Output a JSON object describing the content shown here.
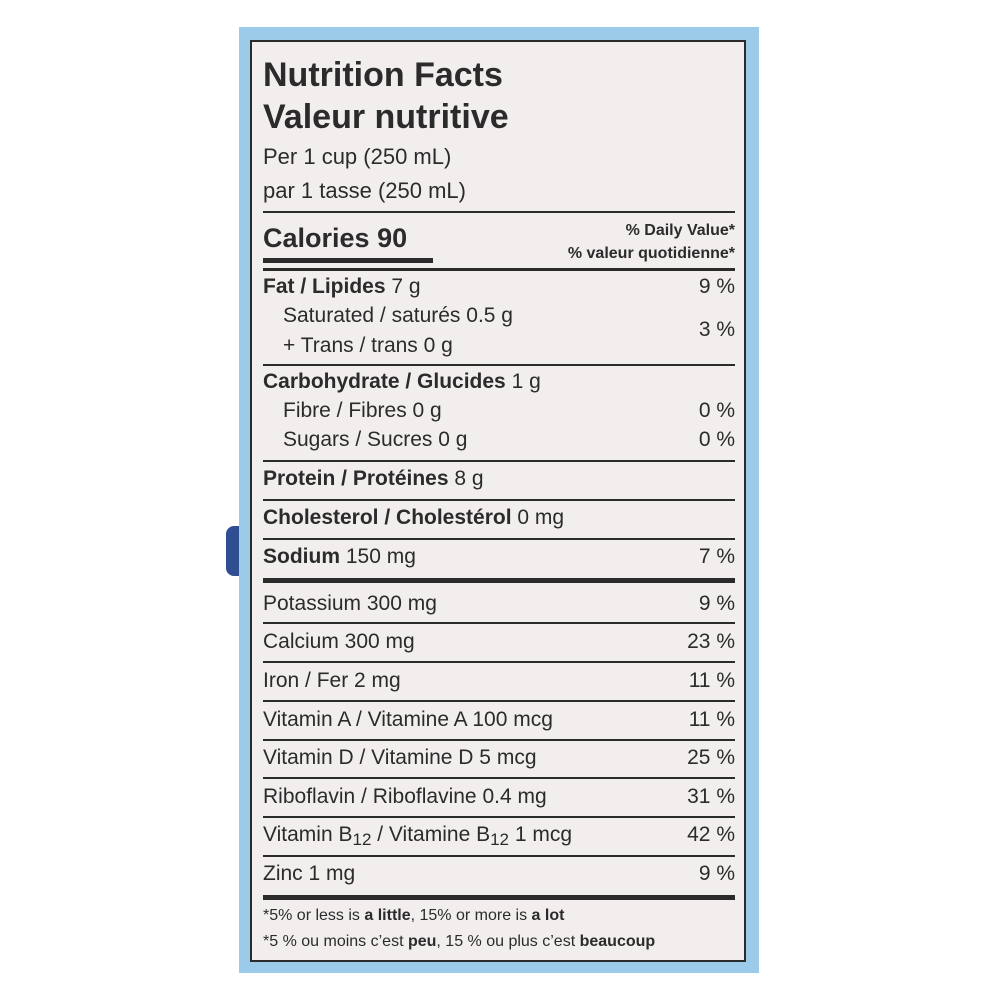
{
  "title_en": "Nutrition Facts",
  "title_fr": "Valeur nutritive",
  "serving_en": "Per 1 cup (250 mL)",
  "serving_fr": "par 1 tasse (250 mL)",
  "calories": {
    "label": "Calories",
    "value": "90"
  },
  "daily_value_en": "% Daily Value*",
  "daily_value_fr": "% valeur quotidienne*",
  "fat": {
    "name": "Fat / Lipides",
    "amount": "7 g",
    "dv": "9 %"
  },
  "saturated": {
    "name": "Saturated / saturés 0.5 g"
  },
  "trans": {
    "name": "+ Trans / trans 0 g"
  },
  "sat_trans_dv": "3 %",
  "carbohydrate": {
    "name": "Carbohydrate / Glucides",
    "amount": "1 g"
  },
  "fibre": {
    "name": "Fibre / Fibres 0 g",
    "dv": "0 %"
  },
  "sugars": {
    "name": "Sugars / Sucres 0 g",
    "dv": "0 %"
  },
  "protein": {
    "name": "Protein / Protéines",
    "amount": "8 g"
  },
  "cholesterol": {
    "name": "Cholesterol / Cholestérol",
    "amount": "0 mg"
  },
  "sodium": {
    "name": "Sodium",
    "amount": "150 mg",
    "dv": "7 %"
  },
  "potassium": {
    "name": "Potassium 300 mg",
    "dv": "9 %"
  },
  "calcium": {
    "name": "Calcium 300 mg",
    "dv": "23 %"
  },
  "iron": {
    "name": "Iron / Fer 2 mg",
    "dv": "11 %"
  },
  "vitamin_a": {
    "name": "Vitamin A / Vitamine A 100 mcg",
    "dv": "11 %"
  },
  "vitamin_d": {
    "name": "Vitamin D / Vitamine D 5 mcg",
    "dv": "25 %"
  },
  "riboflavin": {
    "name": "Riboflavin / Riboflavine 0.4 mg",
    "dv": "31 %"
  },
  "vitamin_b12": {
    "part1": "Vitamin B",
    "sub1": "12",
    "part2": " / Vitamine B",
    "sub2": "12",
    "part3": " 1 mcg",
    "dv": "42 %"
  },
  "zinc": {
    "name": "Zinc 1 mg",
    "dv": "9 %"
  },
  "footnote_en": {
    "pre": "*5% or less is ",
    "little": "a little",
    "mid": ", 15% or more is ",
    "lot": "a lot"
  },
  "footnote_fr": {
    "pre": "*5 % ou moins c’est ",
    "peu": "peu",
    "mid": ", 15 % ou plus c’est ",
    "beaucoup": "beaucoup"
  }
}
